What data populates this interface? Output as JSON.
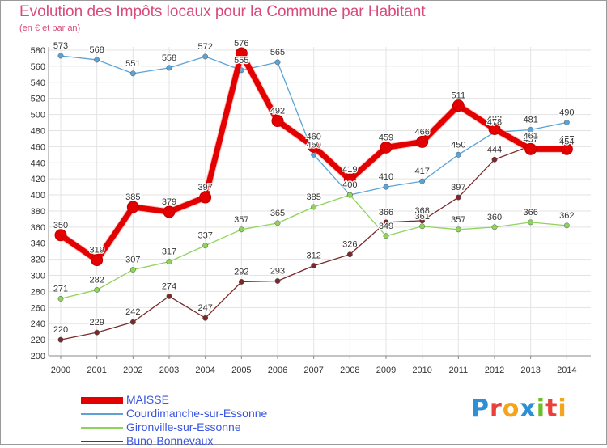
{
  "title": "Evolution des Impôts locaux pour la Commune par Habitant",
  "subtitle": "(en € et par an)",
  "logo": {
    "text": "Proxiti",
    "letter_colors": [
      "#2f8fd6",
      "#e9413a",
      "#f4a51c",
      "#2f8fd6",
      "#6cbf2a",
      "#e9413a",
      "#f4a51c"
    ]
  },
  "chart_data": {
    "type": "line",
    "title": "Evolution des Impôts locaux pour la Commune par Habitant",
    "subtitle": "(en € et par an)",
    "x": [
      "2000",
      "2001",
      "2002",
      "2003",
      "2004",
      "2005",
      "2006",
      "2007",
      "2008",
      "2009",
      "2010",
      "2011",
      "2012",
      "2013",
      "2014"
    ],
    "ylim": [
      200,
      580
    ],
    "yticks": [
      200,
      220,
      240,
      260,
      280,
      300,
      320,
      340,
      360,
      380,
      400,
      420,
      440,
      460,
      480,
      500,
      520,
      540,
      560,
      580
    ],
    "grid": true,
    "legend_position": "bottom-left",
    "series": [
      {
        "name": "MAISSE",
        "color": "#e30000",
        "emphasis": true,
        "values": [
          350,
          319,
          385,
          379,
          397,
          576,
          492,
          460,
          419,
          459,
          466,
          511,
          482,
          457,
          457
        ],
        "labels": [
          "350",
          "319",
          "385",
          "379",
          "397",
          "576",
          "492",
          "460",
          "419",
          "459",
          "466",
          "511",
          "482",
          "457",
          "457"
        ]
      },
      {
        "name": "Courdimanche-sur-Essonne",
        "color": "#5ba3d6",
        "values": [
          573,
          568,
          551,
          558,
          572,
          555,
          565,
          450,
          400,
          410,
          417,
          450,
          478,
          481,
          490
        ],
        "labels": [
          "573",
          "568",
          "551",
          "558",
          "572",
          "555",
          "565",
          "450",
          "400",
          "410",
          "417",
          "450",
          "478",
          "481",
          "490"
        ]
      },
      {
        "name": "Gironville-sur-Essonne",
        "color": "#8fd35c",
        "values": [
          271,
          282,
          307,
          317,
          337,
          357,
          365,
          385,
          400,
          349,
          361,
          357,
          360,
          366,
          362
        ],
        "labels": [
          "271",
          "282",
          "307",
          "317",
          "337",
          "357",
          "365",
          "385",
          "400",
          "349",
          "361",
          "357",
          "360",
          "366",
          "362"
        ]
      },
      {
        "name": "Buno-Bonnevaux",
        "color": "#7a2a2a",
        "values": [
          220,
          229,
          242,
          274,
          247,
          292,
          293,
          312,
          326,
          366,
          368,
          397,
          444,
          461,
          454
        ],
        "labels": [
          "220",
          "229",
          "242",
          "274",
          "247",
          "292",
          "293",
          "312",
          "326",
          "366",
          "368",
          "397",
          "444",
          "461",
          "454"
        ]
      }
    ]
  }
}
